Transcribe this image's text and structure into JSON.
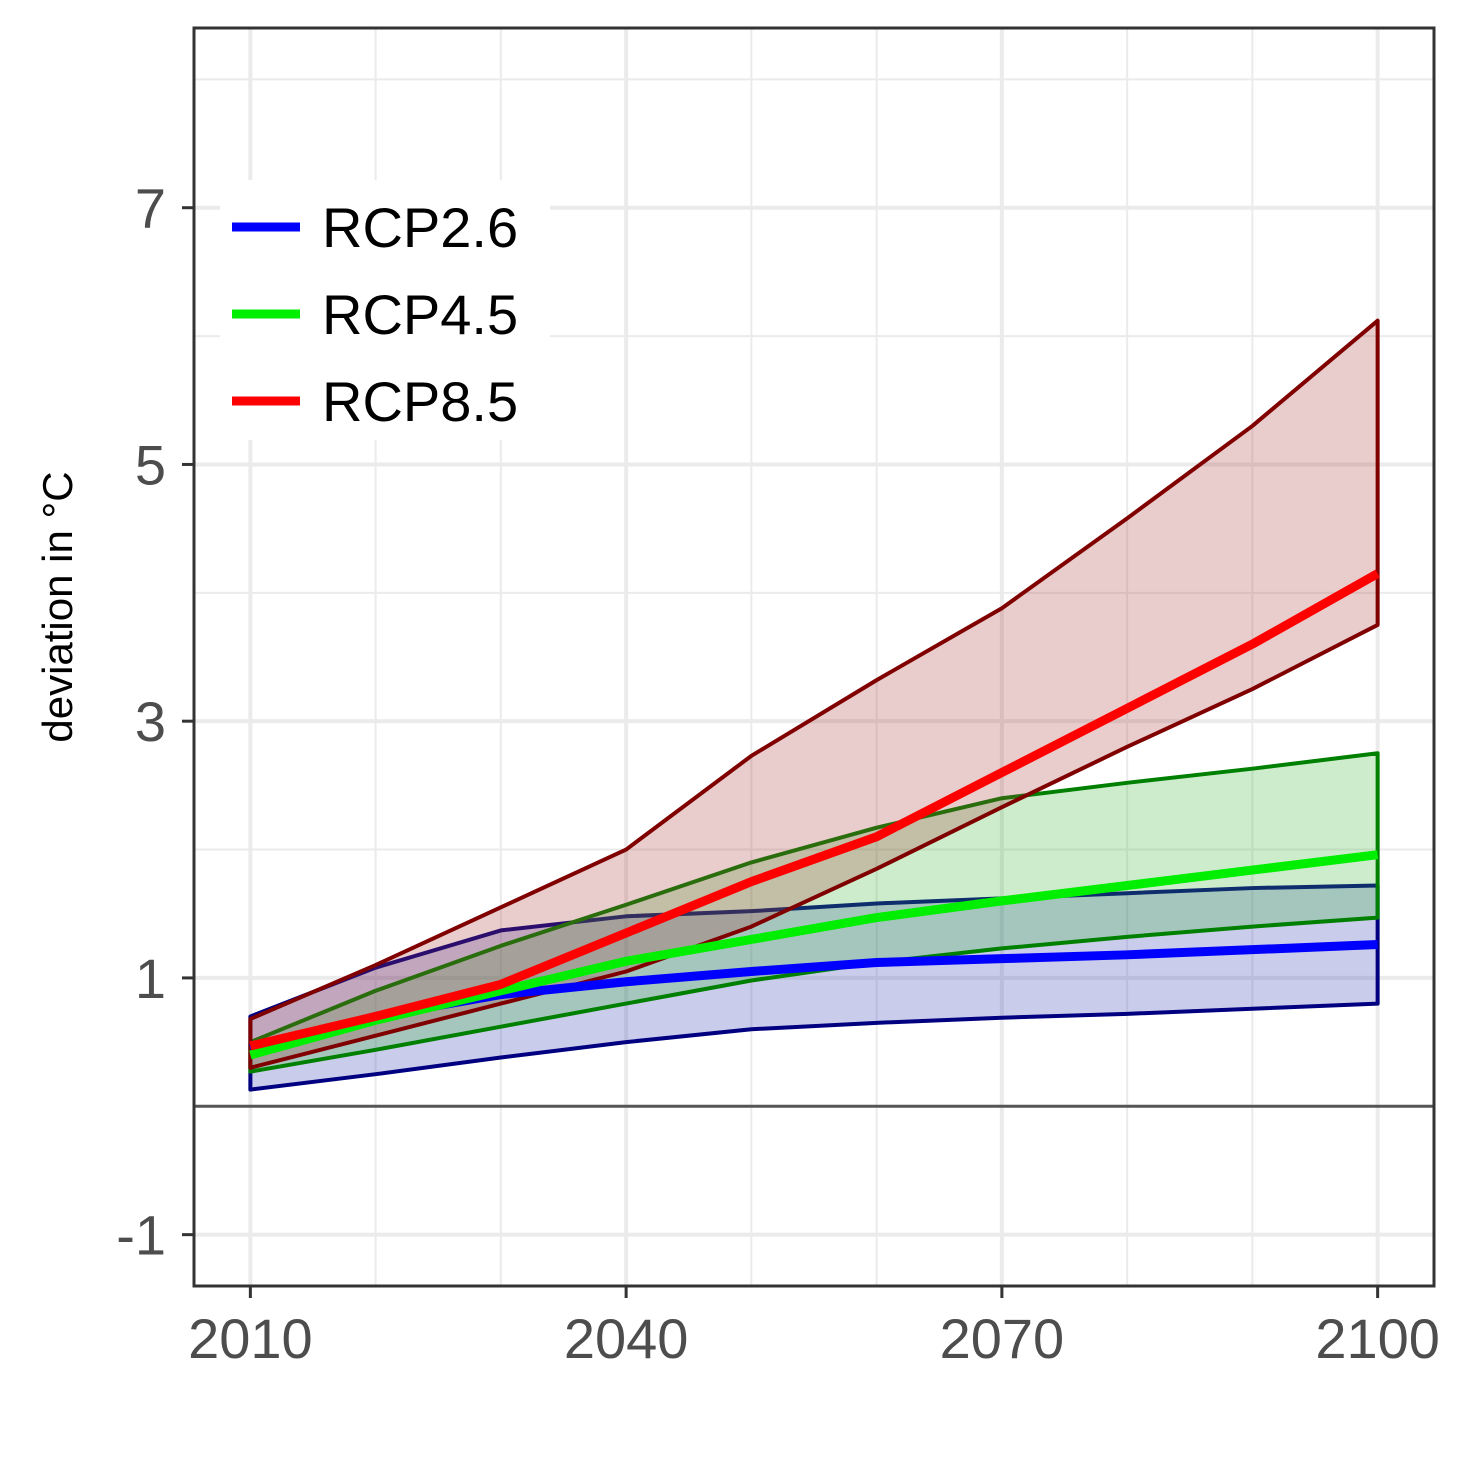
{
  "chart_data": {
    "type": "line",
    "title": "",
    "xlabel": "",
    "ylabel": "deviation in °C",
    "xlim": [
      2005.5,
      2104.5
    ],
    "ylim": [
      -1.4,
      8.4
    ],
    "x_ticks": [
      2010,
      2040,
      2070,
      2100
    ],
    "y_ticks": [
      -1,
      1,
      3,
      5,
      7
    ],
    "grid": true,
    "reference_line_y": 0,
    "legend": {
      "placement": "top-left"
    },
    "series": [
      {
        "name": "RCP2.6",
        "line_color": "#0000ff",
        "band_fill": "#2b35b0",
        "band_stroke": "#000080",
        "x": [
          2010,
          2020,
          2030,
          2040,
          2050,
          2060,
          2070,
          2080,
          2090,
          2100
        ],
        "mean": [
          0.45,
          0.7,
          0.87,
          0.97,
          1.05,
          1.12,
          1.15,
          1.18,
          1.22,
          1.26
        ],
        "upper": [
          0.7,
          1.08,
          1.37,
          1.48,
          1.52,
          1.58,
          1.62,
          1.66,
          1.7,
          1.72
        ],
        "lower": [
          0.13,
          0.25,
          0.38,
          0.5,
          0.6,
          0.65,
          0.69,
          0.72,
          0.76,
          0.8
        ]
      },
      {
        "name": "RCP4.5",
        "line_color": "#00ee00",
        "band_fill": "#33b233",
        "band_stroke": "#008000",
        "x": [
          2010,
          2020,
          2030,
          2040,
          2050,
          2060,
          2070,
          2080,
          2090,
          2100
        ],
        "mean": [
          0.4,
          0.67,
          0.9,
          1.13,
          1.3,
          1.47,
          1.6,
          1.72,
          1.84,
          1.96
        ],
        "upper": [
          0.5,
          0.9,
          1.25,
          1.57,
          1.9,
          2.17,
          2.4,
          2.52,
          2.63,
          2.75
        ],
        "lower": [
          0.27,
          0.44,
          0.62,
          0.8,
          0.98,
          1.12,
          1.23,
          1.32,
          1.4,
          1.47
        ]
      },
      {
        "name": "RCP8.5",
        "line_color": "#ff0000",
        "band_fill": "#a63333",
        "band_stroke": "#800000",
        "x": [
          2010,
          2020,
          2030,
          2040,
          2050,
          2060,
          2070,
          2080,
          2090,
          2100
        ],
        "mean": [
          0.47,
          0.7,
          0.95,
          1.35,
          1.75,
          2.1,
          2.6,
          3.1,
          3.6,
          4.15
        ],
        "upper": [
          0.68,
          1.1,
          1.55,
          2.0,
          2.73,
          3.32,
          3.88,
          4.58,
          5.3,
          6.12
        ],
        "lower": [
          0.3,
          0.55,
          0.8,
          1.05,
          1.4,
          1.85,
          2.33,
          2.8,
          3.25,
          3.75
        ]
      }
    ]
  }
}
